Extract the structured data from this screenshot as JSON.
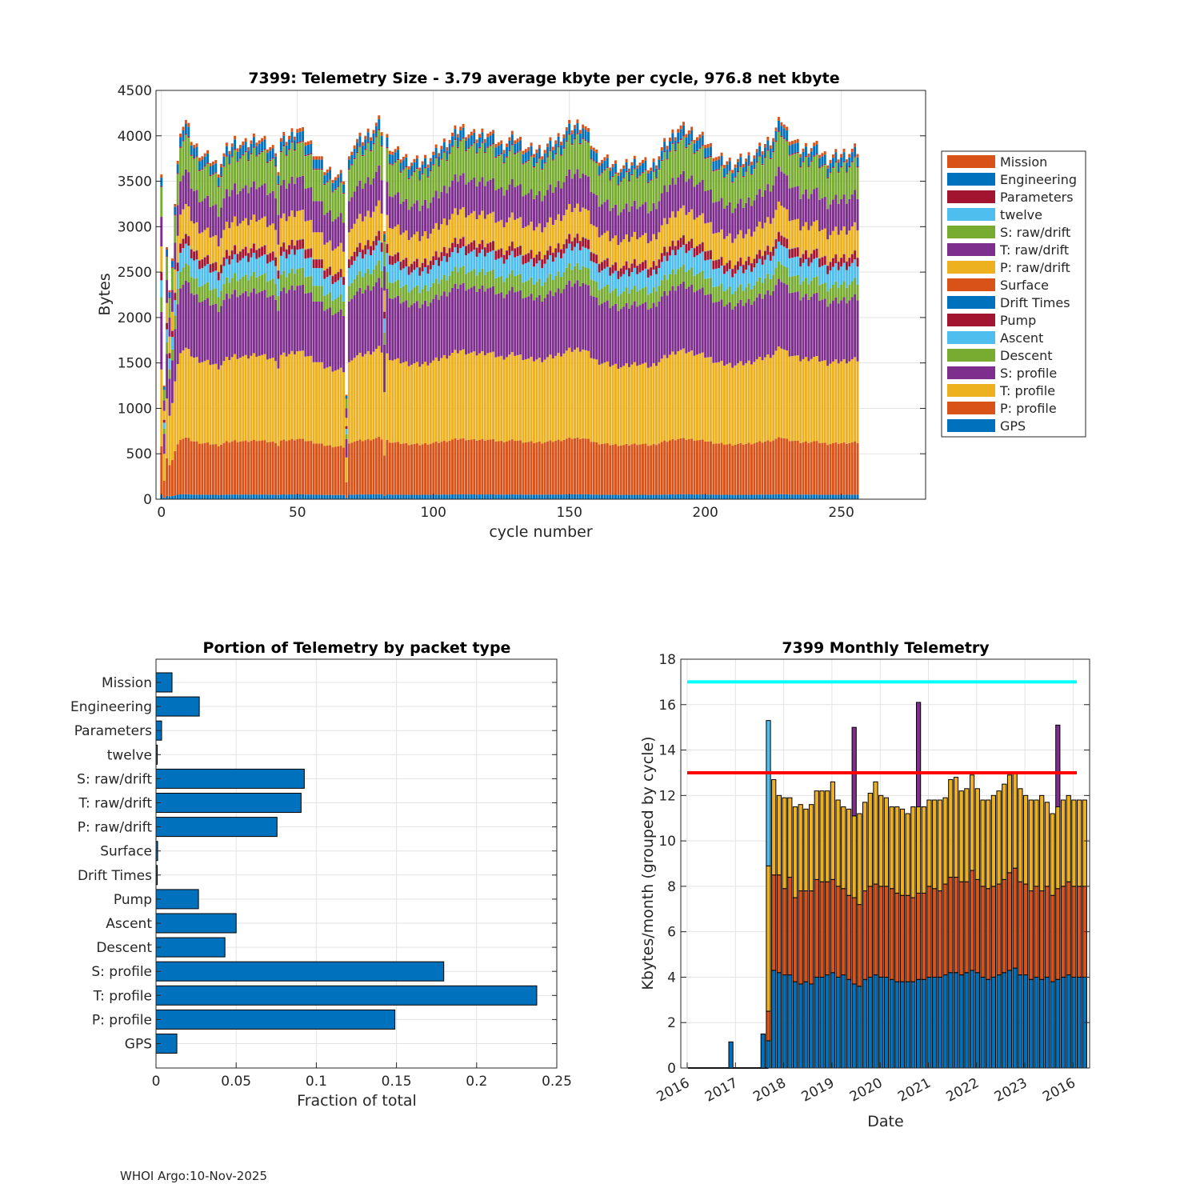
{
  "figure": {
    "footer": "WHOI Argo:10-Nov-2025"
  },
  "chart_data": [
    {
      "id": "telemetry-size",
      "type": "bar",
      "stacked": true,
      "title": "7399: Telemetry Size - 3.79 average kbyte per cycle,  976.8 net kbyte",
      "xlabel": "cycle number",
      "ylabel": "Bytes",
      "xlim": [
        -2,
        281
      ],
      "ylim": [
        0,
        4500
      ],
      "xticks": [
        0,
        50,
        100,
        150,
        200,
        250
      ],
      "yticks": [
        0,
        500,
        1000,
        1500,
        2000,
        2500,
        3000,
        3500,
        4000,
        4500
      ],
      "grid": true,
      "legend_position": "right-outside",
      "n_cycles": 257,
      "series": [
        {
          "name": "GPS",
          "color": "#0072BD",
          "base_value": 50
        },
        {
          "name": "P: profile",
          "color": "#D95319",
          "base_value": 575
        },
        {
          "name": "T: profile",
          "color": "#EDB120",
          "base_value": 910
        },
        {
          "name": "S: profile",
          "color": "#7E2F8E",
          "base_value": 680
        },
        {
          "name": "Descent",
          "color": "#77AC30",
          "base_value": 175
        },
        {
          "name": "Ascent",
          "color": "#4DBEEE",
          "base_value": 200
        },
        {
          "name": "Pump",
          "color": "#A2142F",
          "base_value": 95
        },
        {
          "name": "Drift Times",
          "color": "#0072BD",
          "base_value": 3
        },
        {
          "name": "Surface",
          "color": "#D95319",
          "base_value": 3
        },
        {
          "name": "P: raw/drift",
          "color": "#EDB120",
          "base_value": 300
        },
        {
          "name": "T: raw/drift",
          "color": "#7E2F8E",
          "base_value": 350
        },
        {
          "name": "S: raw/drift",
          "color": "#77AC30",
          "base_value": 350
        },
        {
          "name": "twelve",
          "color": "#4DBEEE",
          "base_value": 2
        },
        {
          "name": "Parameters",
          "color": "#A2142F",
          "base_value": 12
        },
        {
          "name": "Engineering",
          "color": "#0072BD",
          "base_value": 100
        },
        {
          "name": "Mission",
          "color": "#D95319",
          "base_value": 38
        }
      ],
      "total_profile": [
        [
          0,
          3650
        ],
        [
          1,
          1250
        ],
        [
          2,
          2750
        ],
        [
          3,
          3350
        ],
        [
          4,
          2950
        ],
        [
          5,
          3250
        ],
        [
          7,
          4100
        ],
        [
          9,
          4150
        ],
        [
          12,
          3900
        ],
        [
          15,
          3800
        ],
        [
          18,
          3750
        ],
        [
          21,
          3650
        ],
        [
          24,
          3850
        ],
        [
          27,
          3950
        ],
        [
          31,
          3900
        ],
        [
          35,
          4000
        ],
        [
          39,
          3900
        ],
        [
          41,
          3850
        ],
        [
          44,
          3950
        ],
        [
          47,
          4000
        ],
        [
          50,
          4100
        ],
        [
          55,
          3900
        ],
        [
          60,
          3650
        ],
        [
          65,
          3550
        ],
        [
          68,
          3550
        ],
        [
          70,
          3900
        ],
        [
          75,
          4000
        ],
        [
          80,
          4150
        ],
        [
          85,
          3850
        ],
        [
          90,
          3750
        ],
        [
          95,
          3700
        ],
        [
          100,
          3800
        ],
        [
          105,
          3950
        ],
        [
          110,
          4100
        ],
        [
          115,
          4000
        ],
        [
          120,
          4050
        ],
        [
          125,
          3900
        ],
        [
          130,
          4000
        ],
        [
          135,
          3850
        ],
        [
          140,
          3850
        ],
        [
          145,
          3950
        ],
        [
          150,
          4100
        ],
        [
          155,
          4150
        ],
        [
          160,
          3800
        ],
        [
          165,
          3700
        ],
        [
          170,
          3650
        ],
        [
          175,
          3750
        ],
        [
          180,
          3650
        ],
        [
          185,
          3900
        ],
        [
          190,
          4100
        ],
        [
          195,
          4050
        ],
        [
          200,
          3950
        ],
        [
          205,
          3750
        ],
        [
          210,
          3700
        ],
        [
          215,
          3750
        ],
        [
          220,
          3850
        ],
        [
          225,
          4000
        ],
        [
          228,
          4200
        ],
        [
          230,
          4050
        ],
        [
          235,
          3850
        ],
        [
          240,
          3900
        ],
        [
          245,
          3750
        ],
        [
          250,
          3800
        ],
        [
          256,
          3850
        ]
      ],
      "dips": [
        [
          1,
          1250
        ],
        [
          3,
          2300
        ],
        [
          4,
          2650
        ],
        [
          43,
          3600
        ],
        [
          68,
          1150
        ],
        [
          82,
          2950
        ]
      ]
    },
    {
      "id": "portion-by-packet",
      "type": "barh",
      "title": "Portion of Telemetry by packet type",
      "xlabel": "Fraction of total",
      "xlim": [
        0,
        0.25
      ],
      "xticks": [
        0,
        0.05,
        0.1,
        0.15,
        0.2,
        0.25
      ],
      "xtick_labels": [
        "0",
        "0.05",
        "0.1",
        "0.15",
        "0.2",
        "0.25"
      ],
      "grid": true,
      "categories": [
        "Mission",
        "Engineering",
        "Parameters",
        "twelve",
        "S: raw/drift",
        "T: raw/drift",
        "P: raw/drift",
        "Surface",
        "Drift Times",
        "Pump",
        "Ascent",
        "Descent",
        "S: profile",
        "T: profile",
        "P: profile",
        "GPS"
      ],
      "values": [
        0.01,
        0.027,
        0.0035,
        0.0008,
        0.0925,
        0.0905,
        0.0755,
        0.001,
        0.0008,
        0.0265,
        0.05,
        0.043,
        0.1795,
        0.2375,
        0.149,
        0.013
      ],
      "bar_color": "#0072BD"
    },
    {
      "id": "monthly-telemetry",
      "type": "bar",
      "stacked": true,
      "title": "7399 Monthly Telemetry",
      "xlabel": "Date",
      "ylabel": "Kbytes/month (grouped by cycle)",
      "ylim": [
        0,
        18
      ],
      "yticks": [
        0,
        2,
        4,
        6,
        8,
        10,
        12,
        14,
        16,
        18
      ],
      "xtick_labels": [
        "2016",
        "2017",
        "2018",
        "2019",
        "2020",
        "2021",
        "2022",
        "2023",
        "2016"
      ],
      "grid": true,
      "reference_lines": [
        {
          "value": 17,
          "color": "#00FFFF"
        },
        {
          "value": 13,
          "color": "#FF0000"
        }
      ],
      "segment_colors": [
        "#0072BD",
        "#D95319",
        "#EDB120",
        "#7E2F8E",
        "#4DBEEE"
      ],
      "bars": [
        {
          "m": 8,
          "v": [
            1.15
          ]
        },
        {
          "m": 14,
          "v": [
            1.5
          ]
        },
        {
          "m": 15,
          "v": [
            1.2,
            1.3,
            6.4,
            0,
            6.4
          ]
        },
        {
          "m": 16,
          "v": [
            4.3,
            4.2,
            4.2
          ]
        },
        {
          "m": 17,
          "v": [
            4.2,
            4.3,
            3.5
          ]
        },
        {
          "m": 18,
          "v": [
            4.1,
            3.8,
            4.0
          ]
        },
        {
          "m": 19,
          "v": [
            4.1,
            4.3,
            3.5
          ]
        },
        {
          "m": 20,
          "v": [
            3.8,
            3.7,
            4.0
          ]
        },
        {
          "m": 21,
          "v": [
            3.7,
            4.1,
            3.8
          ]
        },
        {
          "m": 22,
          "v": [
            3.8,
            4.0,
            3.6
          ]
        },
        {
          "m": 23,
          "v": [
            3.7,
            4.1,
            3.8
          ]
        },
        {
          "m": 24,
          "v": [
            4.0,
            4.3,
            3.9
          ]
        },
        {
          "m": 25,
          "v": [
            4.0,
            4.2,
            4.0
          ]
        },
        {
          "m": 26,
          "v": [
            4.1,
            4.1,
            4.0
          ]
        },
        {
          "m": 27,
          "v": [
            4.2,
            4.1,
            4.3
          ]
        },
        {
          "m": 28,
          "v": [
            4.0,
            4.0,
            3.8
          ]
        },
        {
          "m": 29,
          "v": [
            4.1,
            3.8,
            3.6
          ]
        },
        {
          "m": 30,
          "v": [
            3.9,
            3.7,
            3.8
          ]
        },
        {
          "m": 31,
          "v": [
            3.7,
            3.8,
            3.6,
            3.9
          ]
        },
        {
          "m": 32,
          "v": [
            3.6,
            3.6,
            4.0
          ]
        },
        {
          "m": 33,
          "v": [
            3.9,
            3.9,
            3.9
          ]
        },
        {
          "m": 34,
          "v": [
            4.0,
            4.0,
            4.1
          ]
        },
        {
          "m": 35,
          "v": [
            4.1,
            4.0,
            4.5
          ]
        },
        {
          "m": 36,
          "v": [
            4.0,
            4.0,
            4.0
          ]
        },
        {
          "m": 37,
          "v": [
            4.0,
            4.0,
            3.9
          ]
        },
        {
          "m": 38,
          "v": [
            3.9,
            4.0,
            3.6
          ]
        },
        {
          "m": 39,
          "v": [
            3.8,
            3.9,
            3.8
          ]
        },
        {
          "m": 40,
          "v": [
            3.8,
            3.8,
            3.8
          ]
        },
        {
          "m": 41,
          "v": [
            3.8,
            3.8,
            3.6
          ]
        },
        {
          "m": 42,
          "v": [
            3.8,
            3.7,
            4.0
          ]
        },
        {
          "m": 43,
          "v": [
            3.9,
            3.8,
            3.8,
            4.6
          ]
        },
        {
          "m": 44,
          "v": [
            3.9,
            3.8,
            3.8
          ]
        },
        {
          "m": 45,
          "v": [
            4.0,
            4.0,
            3.8
          ]
        },
        {
          "m": 46,
          "v": [
            4.0,
            3.9,
            3.9
          ]
        },
        {
          "m": 47,
          "v": [
            4.0,
            3.8,
            4.0
          ]
        },
        {
          "m": 48,
          "v": [
            4.1,
            4.0,
            3.8
          ]
        },
        {
          "m": 49,
          "v": [
            4.2,
            4.2,
            4.3
          ]
        },
        {
          "m": 50,
          "v": [
            4.2,
            4.2,
            4.4
          ]
        },
        {
          "m": 51,
          "v": [
            4.1,
            4.1,
            4.0
          ]
        },
        {
          "m": 52,
          "v": [
            4.2,
            4.0,
            4.1
          ]
        },
        {
          "m": 53,
          "v": [
            4.3,
            4.4,
            4.2
          ]
        },
        {
          "m": 54,
          "v": [
            4.2,
            4.1,
            4.0
          ]
        },
        {
          "m": 55,
          "v": [
            4.0,
            4.0,
            3.8
          ]
        },
        {
          "m": 56,
          "v": [
            3.9,
            4.0,
            3.9
          ]
        },
        {
          "m": 57,
          "v": [
            4.0,
            4.0,
            4.0
          ]
        },
        {
          "m": 58,
          "v": [
            4.1,
            4.0,
            4.1
          ]
        },
        {
          "m": 59,
          "v": [
            4.2,
            4.1,
            4.2
          ]
        },
        {
          "m": 60,
          "v": [
            4.3,
            4.3,
            4.3
          ]
        },
        {
          "m": 61,
          "v": [
            4.4,
            4.4,
            4.2
          ]
        },
        {
          "m": 62,
          "v": [
            4.1,
            4.1,
            4.1
          ]
        },
        {
          "m": 63,
          "v": [
            4.1,
            4.0,
            3.9
          ]
        },
        {
          "m": 64,
          "v": [
            3.9,
            3.9,
            4.0
          ]
        },
        {
          "m": 65,
          "v": [
            4.0,
            4.0,
            3.8
          ]
        },
        {
          "m": 66,
          "v": [
            3.9,
            3.9,
            4.2
          ]
        },
        {
          "m": 67,
          "v": [
            4.0,
            4.0,
            3.7
          ]
        },
        {
          "m": 68,
          "v": [
            3.8,
            3.8,
            3.6
          ]
        },
        {
          "m": 69,
          "v": [
            3.9,
            4.0,
            3.6,
            3.6
          ]
        },
        {
          "m": 70,
          "v": [
            4.0,
            4.0,
            3.8
          ]
        },
        {
          "m": 71,
          "v": [
            4.1,
            4.1,
            3.8
          ]
        },
        {
          "m": 72,
          "v": [
            4.0,
            4.0,
            3.8
          ]
        },
        {
          "m": 73,
          "v": [
            4.0,
            4.0,
            3.8
          ]
        },
        {
          "m": 74,
          "v": [
            4.0,
            4.0,
            3.8
          ]
        }
      ]
    }
  ]
}
